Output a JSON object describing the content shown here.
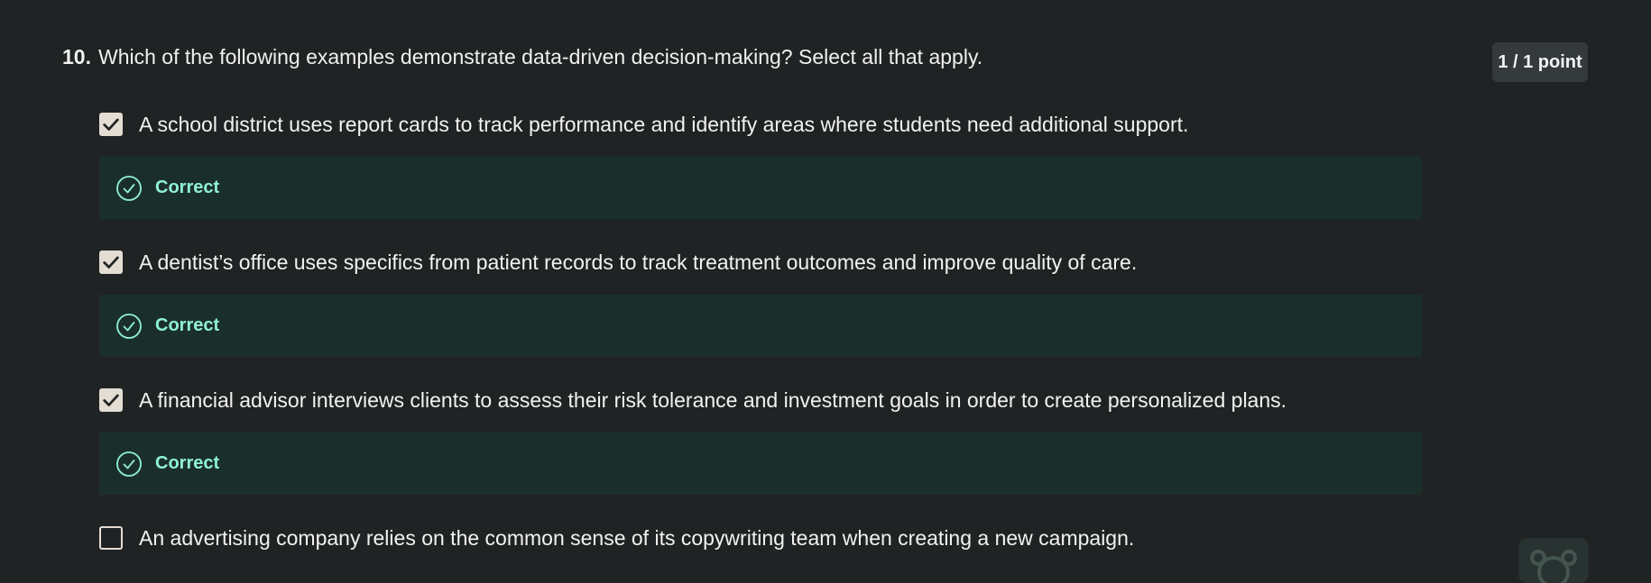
{
  "question": {
    "number": "10.",
    "text": "Which of the following examples demonstrate data-driven decision-making? Select all that apply.",
    "points": "1 / 1 point"
  },
  "options": [
    {
      "text": "A school district uses report cards to track performance and identify areas where students need additional support.",
      "checked": true,
      "feedback": "Correct"
    },
    {
      "text": "A dentist’s office uses specifics from patient records to track treatment outcomes and improve quality of care.",
      "checked": true,
      "feedback": "Correct"
    },
    {
      "text": "A financial advisor interviews clients to assess their risk tolerance and investment goals in order to create personalized plans.",
      "checked": true,
      "feedback": "Correct"
    },
    {
      "text": "An advertising company relies on the common sense of its copywriting team when creating a new campaign.",
      "checked": false,
      "feedback": ""
    }
  ],
  "icons": {
    "checkbox_check": "checkmark-icon",
    "feedback": "check-circle-icon",
    "corner_watermark": "assistant-logo-icon"
  },
  "colors": {
    "background": "#202324",
    "feedback_bg": "#1b2f2a",
    "feedback_text": "#8ff2d4",
    "checkbox": "#e4ddd3",
    "badge_bg": "#34393b"
  }
}
